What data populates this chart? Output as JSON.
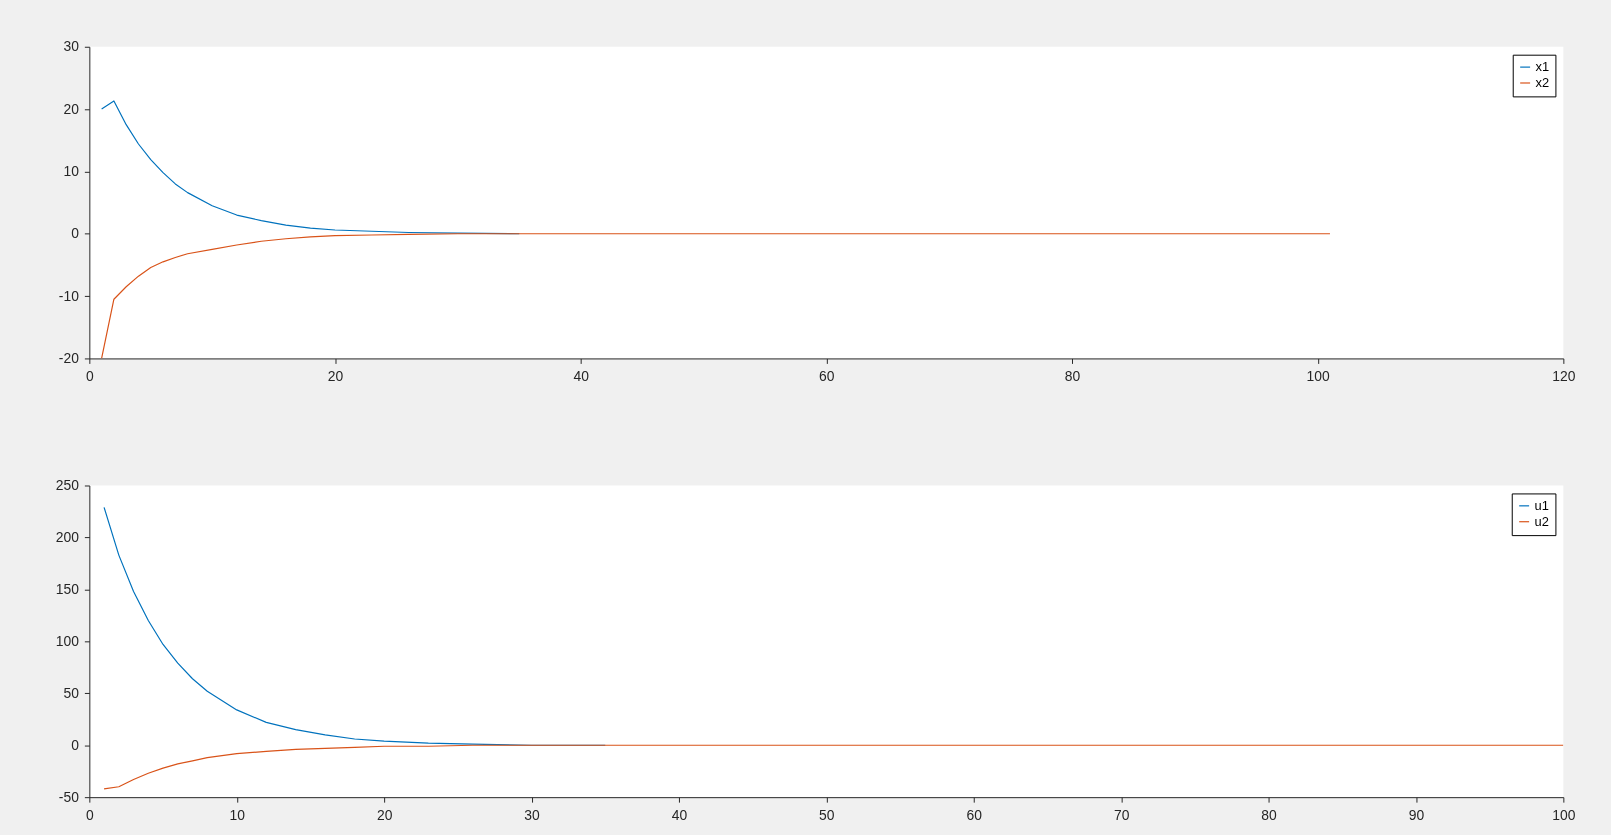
{
  "chart_data": [
    {
      "type": "line",
      "x": [
        1,
        2,
        3,
        4,
        5,
        6,
        7,
        8,
        10,
        12,
        14,
        16,
        18,
        20,
        23,
        26,
        30,
        35,
        40,
        50,
        101
      ],
      "series": [
        {
          "name": "x1",
          "color": "#0072bd",
          "values": [
            20,
            21.3,
            17.5,
            14.4,
            11.9,
            9.8,
            8.0,
            6.6,
            4.5,
            3.0,
            2.1,
            1.4,
            0.9,
            0.6,
            0.4,
            0.2,
            0.1,
            0,
            null,
            null,
            null
          ]
        },
        {
          "name": "x2",
          "color": "#d95319",
          "values": [
            -20,
            -10.5,
            -8.5,
            -6.8,
            -5.4,
            -4.5,
            -3.8,
            -3.2,
            -2.5,
            -1.8,
            -1.2,
            -0.8,
            -0.5,
            -0.3,
            -0.2,
            -0.1,
            0,
            0,
            0,
            0,
            0
          ]
        }
      ],
      "xlim": [
        0,
        120
      ],
      "xticks": [
        0,
        20,
        40,
        60,
        80,
        100,
        120
      ],
      "ylim": [
        -20,
        30
      ],
      "yticks": [
        -20,
        -10,
        0,
        10,
        20,
        30
      ],
      "legend": "top right"
    },
    {
      "type": "line",
      "x": [
        1,
        2,
        3,
        4,
        5,
        6,
        7,
        8,
        10,
        12,
        14,
        16,
        18,
        20,
        23,
        26,
        30,
        35,
        40,
        50,
        100
      ],
      "series": [
        {
          "name": "u1",
          "color": "#0072bd",
          "values": [
            229,
            183,
            148,
            120,
            97,
            79,
            64,
            52,
            34,
            22,
            15,
            10,
            6,
            4,
            2,
            1,
            0,
            0,
            null,
            null,
            null
          ]
        },
        {
          "name": "u2",
          "color": "#d95319",
          "values": [
            -42,
            -40,
            -33,
            -27,
            -22,
            -18,
            -15,
            -12,
            -8,
            -6,
            -4,
            -3,
            -2,
            -1,
            -1,
            0,
            0,
            0,
            0,
            0,
            0
          ]
        }
      ],
      "xlim": [
        0,
        100
      ],
      "xticks": [
        0,
        10,
        20,
        30,
        40,
        50,
        60,
        70,
        80,
        90,
        100
      ],
      "ylim": [
        -50,
        250
      ],
      "yticks": [
        -50,
        0,
        50,
        100,
        150,
        200,
        250
      ],
      "legend": "top right"
    }
  ]
}
